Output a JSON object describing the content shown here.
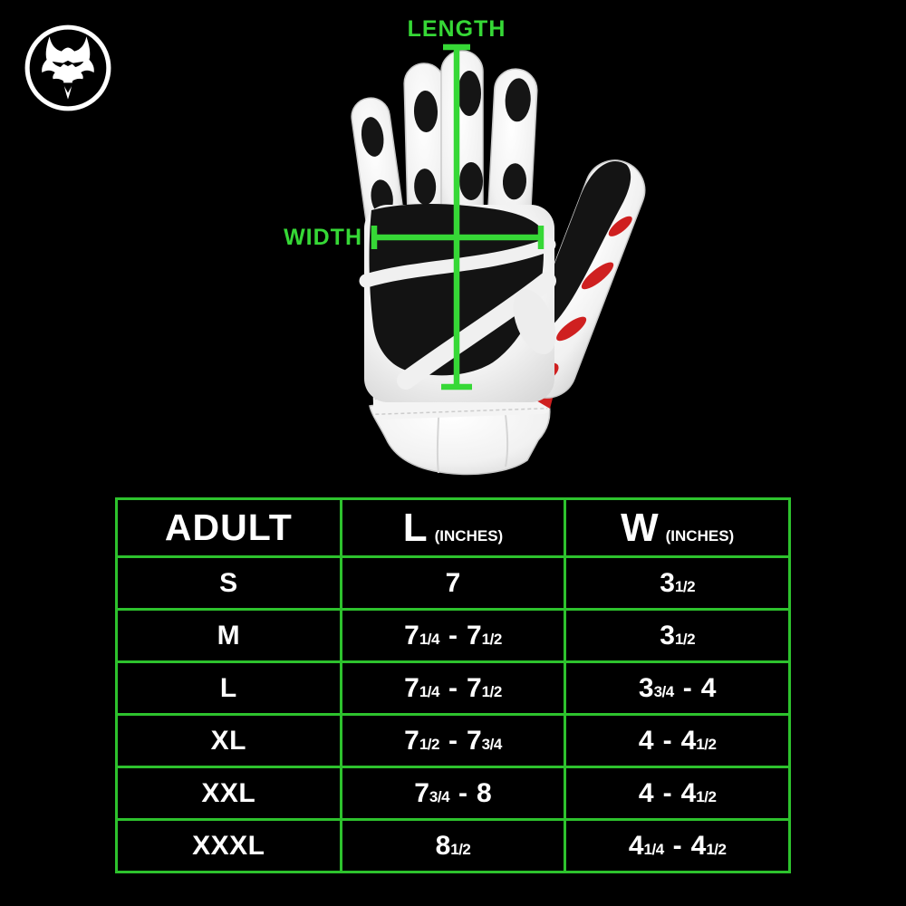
{
  "colors": {
    "background": "#000000",
    "green_accent": "#36d836",
    "table_border_green": "#2dc22d",
    "text_white": "#ffffff",
    "glove_red": "#cf2020"
  },
  "logo": {
    "alt": "wolf head logo"
  },
  "diagram": {
    "length_label": "LENGTH",
    "width_label": "WIDTH"
  },
  "table": {
    "headers": {
      "size_col": "ADULT",
      "length_main": "L",
      "length_sub": "(INCHES)",
      "width_main": "W",
      "width_sub": "(INCHES)"
    },
    "rows": [
      {
        "size": "S",
        "l": [
          [
            "n",
            "7"
          ]
        ],
        "w": [
          [
            "n",
            "3"
          ],
          [
            "f",
            "1/2"
          ]
        ]
      },
      {
        "size": "M",
        "l": [
          [
            "n",
            "7"
          ],
          [
            "f",
            "1/4"
          ],
          [
            "d",
            "-"
          ],
          [
            "n",
            "7"
          ],
          [
            "f",
            "1/2"
          ]
        ],
        "w": [
          [
            "n",
            "3"
          ],
          [
            "f",
            "1/2"
          ]
        ]
      },
      {
        "size": "L",
        "l": [
          [
            "n",
            "7"
          ],
          [
            "f",
            "1/4"
          ],
          [
            "d",
            "-"
          ],
          [
            "n",
            "7"
          ],
          [
            "f",
            "1/2"
          ]
        ],
        "w": [
          [
            "n",
            "3"
          ],
          [
            "f",
            "3/4"
          ],
          [
            "d",
            "-"
          ],
          [
            "n",
            "4"
          ]
        ]
      },
      {
        "size": "XL",
        "l": [
          [
            "n",
            "7"
          ],
          [
            "f",
            "1/2"
          ],
          [
            "d",
            "-"
          ],
          [
            "n",
            "7"
          ],
          [
            "f",
            "3/4"
          ]
        ],
        "w": [
          [
            "n",
            "4"
          ],
          [
            "d",
            "-"
          ],
          [
            "n",
            "4"
          ],
          [
            "f",
            "1/2"
          ]
        ]
      },
      {
        "size": "XXL",
        "l": [
          [
            "n",
            "7"
          ],
          [
            "f",
            "3/4"
          ],
          [
            "d",
            "-"
          ],
          [
            "n",
            "8"
          ]
        ],
        "w": [
          [
            "n",
            "4"
          ],
          [
            "d",
            "-"
          ],
          [
            "n",
            "4"
          ],
          [
            "f",
            "1/2"
          ]
        ]
      },
      {
        "size": "XXXL",
        "l": [
          [
            "n",
            "8"
          ],
          [
            "f",
            "1/2"
          ]
        ],
        "w": [
          [
            "n",
            "4"
          ],
          [
            "f",
            "1/4"
          ],
          [
            "d",
            "-"
          ],
          [
            "n",
            "4"
          ],
          [
            "f",
            "1/2"
          ]
        ]
      }
    ]
  }
}
